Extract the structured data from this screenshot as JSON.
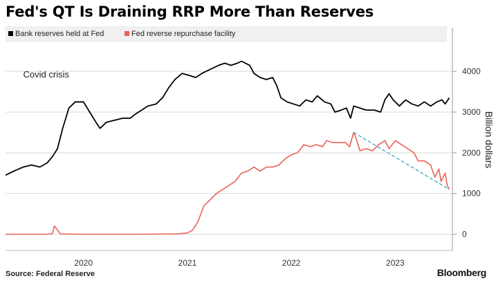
{
  "header": {
    "title": "Fed's QT Is Draining RRP More Than Reserves"
  },
  "footer": {
    "source": "Source:  Federal Reserve",
    "brand": "Bloomberg"
  },
  "colors": {
    "reserves": "#000000",
    "rrp": "#e8625a",
    "trend": "#4aa8c0",
    "grid": "#d9d9d9",
    "legend_bg": "#f0f0f0"
  },
  "chart_data": {
    "type": "line",
    "title": "Fed's QT Is Draining RRP More Than Reserves",
    "xlabel": "",
    "ylabel": "Billion dollars",
    "ylim": [
      -400,
      4700
    ],
    "xlim": [
      2019.25,
      2023.55
    ],
    "x_ticks": [
      {
        "value": 2020.0,
        "label": "2020"
      },
      {
        "value": 2021.0,
        "label": "2021"
      },
      {
        "value": 2022.0,
        "label": "2022"
      },
      {
        "value": 2023.0,
        "label": "2023"
      }
    ],
    "y_ticks": [
      {
        "value": 0,
        "label": "0"
      },
      {
        "value": 1000,
        "label": "1000"
      },
      {
        "value": 2000,
        "label": "2000"
      },
      {
        "value": 3000,
        "label": "3000"
      },
      {
        "value": 4000,
        "label": "4000"
      }
    ],
    "grid": true,
    "legend_position": "top-left",
    "annotation": {
      "label": "Covid crisis",
      "x": 2019.42,
      "y": 3850
    },
    "series": [
      {
        "name": "Bank reserves held at Fed",
        "color": "#000000",
        "points": [
          [
            2019.25,
            1450
          ],
          [
            2019.33,
            1550
          ],
          [
            2019.42,
            1650
          ],
          [
            2019.5,
            1700
          ],
          [
            2019.58,
            1650
          ],
          [
            2019.65,
            1750
          ],
          [
            2019.7,
            1900
          ],
          [
            2019.75,
            2100
          ],
          [
            2019.8,
            2600
          ],
          [
            2019.86,
            3100
          ],
          [
            2019.92,
            3250
          ],
          [
            2020.0,
            3250
          ],
          [
            2020.06,
            3000
          ],
          [
            2020.12,
            2750
          ],
          [
            2020.16,
            2600
          ],
          [
            2020.22,
            2750
          ],
          [
            2020.3,
            2800
          ],
          [
            2020.38,
            2850
          ],
          [
            2020.45,
            2850
          ],
          [
            2020.5,
            2950
          ],
          [
            2020.56,
            3050
          ],
          [
            2020.62,
            3150
          ],
          [
            2020.7,
            3200
          ],
          [
            2020.76,
            3350
          ],
          [
            2020.82,
            3600
          ],
          [
            2020.88,
            3800
          ],
          [
            2020.95,
            3950
          ],
          [
            2021.02,
            3900
          ],
          [
            2021.08,
            3850
          ],
          [
            2021.14,
            3950
          ],
          [
            2021.22,
            4050
          ],
          [
            2021.3,
            4150
          ],
          [
            2021.36,
            4200
          ],
          [
            2021.42,
            4150
          ],
          [
            2021.48,
            4200
          ],
          [
            2021.52,
            4250
          ],
          [
            2021.56,
            4200
          ],
          [
            2021.6,
            4150
          ],
          [
            2021.64,
            3950
          ],
          [
            2021.7,
            3850
          ],
          [
            2021.76,
            3800
          ],
          [
            2021.82,
            3850
          ],
          [
            2021.86,
            3650
          ],
          [
            2021.9,
            3350
          ],
          [
            2021.96,
            3250
          ],
          [
            2022.02,
            3200
          ],
          [
            2022.08,
            3150
          ],
          [
            2022.14,
            3300
          ],
          [
            2022.2,
            3250
          ],
          [
            2022.25,
            3400
          ],
          [
            2022.32,
            3250
          ],
          [
            2022.38,
            3200
          ],
          [
            2022.42,
            3000
          ],
          [
            2022.48,
            3050
          ],
          [
            2022.53,
            3100
          ],
          [
            2022.57,
            2850
          ],
          [
            2022.6,
            3150
          ],
          [
            2022.66,
            3100
          ],
          [
            2022.72,
            3050
          ],
          [
            2022.8,
            3050
          ],
          [
            2022.86,
            3000
          ],
          [
            2022.9,
            3300
          ],
          [
            2022.94,
            3450
          ],
          [
            2022.98,
            3300
          ],
          [
            2023.04,
            3150
          ],
          [
            2023.1,
            3300
          ],
          [
            2023.16,
            3200
          ],
          [
            2023.22,
            3150
          ],
          [
            2023.28,
            3250
          ],
          [
            2023.34,
            3150
          ],
          [
            2023.4,
            3250
          ],
          [
            2023.45,
            3300
          ],
          [
            2023.48,
            3200
          ],
          [
            2023.52,
            3350
          ]
        ]
      },
      {
        "name": "Fed reverse repurchase facility",
        "color": "#e8625a",
        "points": [
          [
            2019.25,
            0
          ],
          [
            2019.65,
            0
          ],
          [
            2019.7,
            10
          ],
          [
            2019.72,
            200
          ],
          [
            2019.75,
            100
          ],
          [
            2019.78,
            5
          ],
          [
            2020.0,
            0
          ],
          [
            2020.5,
            0
          ],
          [
            2020.9,
            5
          ],
          [
            2021.0,
            30
          ],
          [
            2021.05,
            100
          ],
          [
            2021.1,
            300
          ],
          [
            2021.16,
            700
          ],
          [
            2021.22,
            850
          ],
          [
            2021.28,
            1000
          ],
          [
            2021.34,
            1100
          ],
          [
            2021.4,
            1200
          ],
          [
            2021.46,
            1300
          ],
          [
            2021.52,
            1500
          ],
          [
            2021.58,
            1550
          ],
          [
            2021.64,
            1650
          ],
          [
            2021.7,
            1550
          ],
          [
            2021.76,
            1650
          ],
          [
            2021.82,
            1650
          ],
          [
            2021.88,
            1700
          ],
          [
            2021.94,
            1850
          ],
          [
            2022.0,
            1950
          ],
          [
            2022.06,
            2000
          ],
          [
            2022.12,
            2200
          ],
          [
            2022.18,
            2150
          ],
          [
            2022.24,
            2200
          ],
          [
            2022.3,
            2150
          ],
          [
            2022.34,
            2300
          ],
          [
            2022.4,
            2250
          ],
          [
            2022.46,
            2250
          ],
          [
            2022.52,
            2250
          ],
          [
            2022.56,
            2150
          ],
          [
            2022.6,
            2500
          ],
          [
            2022.63,
            2300
          ],
          [
            2022.66,
            2050
          ],
          [
            2022.72,
            2100
          ],
          [
            2022.78,
            2050
          ],
          [
            2022.84,
            2200
          ],
          [
            2022.9,
            2300
          ],
          [
            2022.94,
            2100
          ],
          [
            2023.0,
            2300
          ],
          [
            2023.06,
            2200
          ],
          [
            2023.12,
            2100
          ],
          [
            2023.18,
            2000
          ],
          [
            2023.22,
            1800
          ],
          [
            2023.28,
            1800
          ],
          [
            2023.34,
            1700
          ],
          [
            2023.38,
            1400
          ],
          [
            2023.42,
            1600
          ],
          [
            2023.44,
            1300
          ],
          [
            2023.48,
            1500
          ],
          [
            2023.5,
            1200
          ],
          [
            2023.52,
            1100
          ]
        ]
      },
      {
        "name": "RRP decline trend",
        "color": "#4aa8c0",
        "dashed": true,
        "points": [
          [
            2022.6,
            2500
          ],
          [
            2023.52,
            1100
          ]
        ]
      }
    ]
  }
}
